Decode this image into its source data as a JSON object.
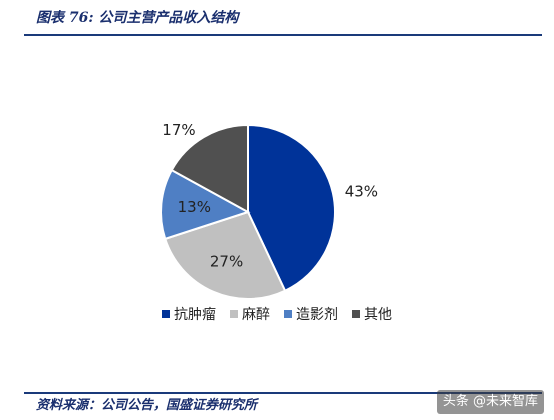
{
  "figure": {
    "title": "图表 76:  公司主营产品收入结构",
    "source": "资料来源：公司公告，国盛证券研究所",
    "watermark": "头条 @未来智库"
  },
  "chart_data": {
    "type": "pie",
    "start_angle_deg": 0,
    "direction": "clockwise",
    "slices": [
      {
        "name": "抗肿瘤",
        "value": 43,
        "label": "43%",
        "color": "#003399",
        "label_outside": true
      },
      {
        "name": "麻醉",
        "value": 27,
        "label": "27%",
        "color": "#c0c0c0",
        "label_outside": false
      },
      {
        "name": "造影剂",
        "value": 13,
        "label": "13%",
        "color": "#4f7fc4",
        "label_outside": false
      },
      {
        "name": "其他",
        "value": 17,
        "label": "17%",
        "color": "#505050",
        "label_outside": true
      }
    ],
    "legend_position": "bottom"
  }
}
